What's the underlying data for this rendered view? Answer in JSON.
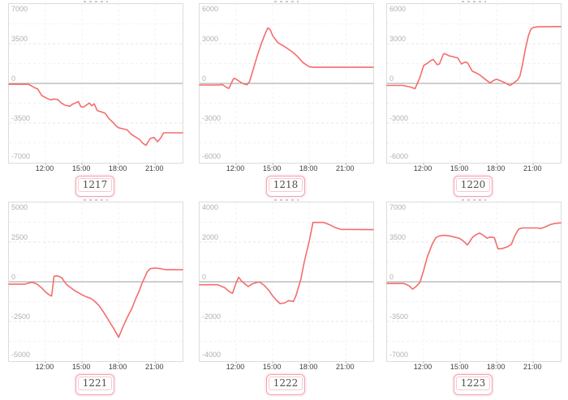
{
  "colors": {
    "series_line": "#f56c6c",
    "zero_line": "#9e9e9e",
    "grid_major": "#e6e6e6",
    "grid_minor": "#f2f2f2",
    "plot_border": "#dcdcdc",
    "y_label": "#b0b0b0",
    "x_label": "#404040",
    "badge_border": "#f2a2b0",
    "badge_text": "#4f4f4f"
  },
  "chart_data": [
    {
      "type": "line",
      "badge": "1217",
      "y_max": 7000,
      "y_ticks": [
        7000,
        3500,
        0,
        -3500,
        -7000
      ],
      "x_domain": [
        9,
        23.25
      ],
      "x_ticks": [
        {
          "hour": 12,
          "label": "12:00"
        },
        {
          "hour": 15,
          "label": "15:00"
        },
        {
          "hour": 18,
          "label": "18:00"
        },
        {
          "hour": 21,
          "label": "21:00"
        }
      ],
      "points": [
        [
          9,
          -80
        ],
        [
          10.6,
          -80
        ],
        [
          10.9,
          -250
        ],
        [
          11.1,
          -380
        ],
        [
          11.35,
          -480
        ],
        [
          11.7,
          -1070
        ],
        [
          12.1,
          -1310
        ],
        [
          12.4,
          -1450
        ],
        [
          12.7,
          -1380
        ],
        [
          13,
          -1420
        ],
        [
          13.3,
          -1730
        ],
        [
          13.6,
          -1920
        ],
        [
          14,
          -2020
        ],
        [
          14.2,
          -1850
        ],
        [
          14.45,
          -1730
        ],
        [
          14.7,
          -1610
        ],
        [
          14.9,
          -2040
        ],
        [
          15.1,
          -2110
        ],
        [
          15.35,
          -1920
        ],
        [
          15.6,
          -1730
        ],
        [
          15.8,
          -1970
        ],
        [
          16,
          -1800
        ],
        [
          16.25,
          -2400
        ],
        [
          16.6,
          -2520
        ],
        [
          16.9,
          -2630
        ],
        [
          17.2,
          -3090
        ],
        [
          17.6,
          -3510
        ],
        [
          17.85,
          -3800
        ],
        [
          18,
          -3915
        ],
        [
          18.3,
          -3990
        ],
        [
          18.7,
          -4100
        ],
        [
          19,
          -4460
        ],
        [
          19.35,
          -4700
        ],
        [
          19.7,
          -4930
        ],
        [
          20,
          -5290
        ],
        [
          20.25,
          -5460
        ],
        [
          20.6,
          -4860
        ],
        [
          20.9,
          -4770
        ],
        [
          21.2,
          -5140
        ],
        [
          21.45,
          -4820
        ],
        [
          21.7,
          -4360
        ],
        [
          23.25,
          -4360
        ]
      ]
    },
    {
      "type": "line",
      "badge": "1218",
      "y_max": 6000,
      "y_ticks": [
        6000,
        3000,
        0,
        -3000,
        -6000
      ],
      "x_domain": [
        9,
        23.25
      ],
      "x_ticks": [
        {
          "hour": 12,
          "label": "12:00"
        },
        {
          "hour": 15,
          "label": "15:00"
        },
        {
          "hour": 18,
          "label": "18:00"
        },
        {
          "hour": 21,
          "label": "21:00"
        }
      ],
      "points": [
        [
          9,
          -120
        ],
        [
          10.5,
          -120
        ],
        [
          10.9,
          -100
        ],
        [
          11.2,
          -300
        ],
        [
          11.4,
          -380
        ],
        [
          11.75,
          300
        ],
        [
          11.85,
          390
        ],
        [
          12.1,
          250
        ],
        [
          12.4,
          60
        ],
        [
          12.7,
          -60
        ],
        [
          12.9,
          -100
        ],
        [
          13.1,
          150
        ],
        [
          13.35,
          900
        ],
        [
          13.7,
          2000
        ],
        [
          14.1,
          3100
        ],
        [
          14.4,
          3800
        ],
        [
          14.6,
          4200
        ],
        [
          14.8,
          4050
        ],
        [
          15,
          3600
        ],
        [
          15.4,
          3100
        ],
        [
          15.9,
          2830
        ],
        [
          16.3,
          2580
        ],
        [
          16.7,
          2320
        ],
        [
          17,
          2070
        ],
        [
          17.5,
          1570
        ],
        [
          18,
          1260
        ],
        [
          18.3,
          1220
        ],
        [
          23.25,
          1220
        ]
      ]
    },
    {
      "type": "line",
      "badge": "1220",
      "y_max": 6000,
      "y_ticks": [
        6000,
        3000,
        0,
        -3000,
        -6000
      ],
      "x_domain": [
        9,
        23.25
      ],
      "x_ticks": [
        {
          "hour": 12,
          "label": "12:00"
        },
        {
          "hour": 15,
          "label": "15:00"
        },
        {
          "hour": 18,
          "label": "18:00"
        },
        {
          "hour": 21,
          "label": "21:00"
        }
      ],
      "points": [
        [
          9,
          -150
        ],
        [
          10.3,
          -150
        ],
        [
          10.9,
          -270
        ],
        [
          11.3,
          -400
        ],
        [
          11.7,
          450
        ],
        [
          12,
          1360
        ],
        [
          12.3,
          1520
        ],
        [
          12.6,
          1730
        ],
        [
          12.8,
          1810
        ],
        [
          13.1,
          1420
        ],
        [
          13.3,
          1470
        ],
        [
          13.6,
          2180
        ],
        [
          13.7,
          2260
        ],
        [
          14.1,
          2080
        ],
        [
          14.4,
          2020
        ],
        [
          14.8,
          1930
        ],
        [
          15.1,
          1470
        ],
        [
          15.4,
          1610
        ],
        [
          15.6,
          1570
        ],
        [
          16,
          920
        ],
        [
          16.3,
          800
        ],
        [
          16.6,
          650
        ],
        [
          17,
          350
        ],
        [
          17.3,
          140
        ],
        [
          17.45,
          40
        ],
        [
          17.8,
          250
        ],
        [
          18,
          310
        ],
        [
          18.3,
          200
        ],
        [
          18.7,
          40
        ],
        [
          18.9,
          -60
        ],
        [
          19.1,
          -160
        ],
        [
          19.4,
          40
        ],
        [
          19.7,
          250
        ],
        [
          19.9,
          550
        ],
        [
          20.1,
          1360
        ],
        [
          20.35,
          2580
        ],
        [
          20.6,
          3600
        ],
        [
          20.8,
          4100
        ],
        [
          21,
          4230
        ],
        [
          21.4,
          4280
        ],
        [
          23.25,
          4300
        ]
      ]
    },
    {
      "type": "line",
      "badge": "1221",
      "y_max": 5000,
      "y_ticks": [
        5000,
        2500,
        0,
        -2500,
        -5000
      ],
      "x_domain": [
        9,
        23.25
      ],
      "x_ticks": [
        {
          "hour": 12,
          "label": "12:00"
        },
        {
          "hour": 15,
          "label": "15:00"
        },
        {
          "hour": 18,
          "label": "18:00"
        },
        {
          "hour": 21,
          "label": "21:00"
        }
      ],
      "points": [
        [
          9,
          -150
        ],
        [
          10.3,
          -150
        ],
        [
          10.9,
          -30
        ],
        [
          11.3,
          -140
        ],
        [
          11.7,
          -390
        ],
        [
          12,
          -650
        ],
        [
          12.3,
          -820
        ],
        [
          12.5,
          -900
        ],
        [
          12.7,
          340
        ],
        [
          12.9,
          375
        ],
        [
          13.1,
          340
        ],
        [
          13.35,
          250
        ],
        [
          13.6,
          -50
        ],
        [
          13.8,
          -220
        ],
        [
          14.1,
          -390
        ],
        [
          14.4,
          -560
        ],
        [
          14.8,
          -730
        ],
        [
          15,
          -820
        ],
        [
          15.3,
          -930
        ],
        [
          15.7,
          -1040
        ],
        [
          16,
          -1200
        ],
        [
          16.4,
          -1500
        ],
        [
          16.8,
          -1950
        ],
        [
          17.2,
          -2450
        ],
        [
          17.6,
          -2950
        ],
        [
          18,
          -3500
        ],
        [
          18.4,
          -2760
        ],
        [
          18.7,
          -2260
        ],
        [
          19.1,
          -1660
        ],
        [
          19.4,
          -1070
        ],
        [
          19.7,
          -560
        ],
        [
          19.9,
          -140
        ],
        [
          20.1,
          200
        ],
        [
          20.35,
          630
        ],
        [
          20.6,
          830
        ],
        [
          21,
          865
        ],
        [
          21.4,
          830
        ],
        [
          21.9,
          760
        ],
        [
          23.25,
          760
        ]
      ]
    },
    {
      "type": "line",
      "badge": "1222",
      "y_max": 4000,
      "y_ticks": [
        4000,
        2000,
        0,
        -2000,
        -4000
      ],
      "x_domain": [
        9,
        23.25
      ],
      "x_ticks": [
        {
          "hour": 12,
          "label": "12:00"
        },
        {
          "hour": 15,
          "label": "15:00"
        },
        {
          "hour": 18,
          "label": "18:00"
        },
        {
          "hour": 21,
          "label": "21:00"
        }
      ],
      "points": [
        [
          9,
          -150
        ],
        [
          10.5,
          -150
        ],
        [
          11.1,
          -310
        ],
        [
          11.4,
          -480
        ],
        [
          11.7,
          -580
        ],
        [
          12,
          -40
        ],
        [
          12.2,
          230
        ],
        [
          12.45,
          30
        ],
        [
          12.8,
          -150
        ],
        [
          13,
          -240
        ],
        [
          13.3,
          -110
        ],
        [
          13.7,
          -30
        ],
        [
          13.95,
          -20
        ],
        [
          14.3,
          -180
        ],
        [
          14.7,
          -450
        ],
        [
          15,
          -720
        ],
        [
          15.35,
          -960
        ],
        [
          15.6,
          -1100
        ],
        [
          16,
          -1060
        ],
        [
          16.3,
          -950
        ],
        [
          16.7,
          -990
        ],
        [
          16.9,
          -720
        ],
        [
          17.3,
          100
        ],
        [
          17.6,
          1040
        ],
        [
          18,
          2060
        ],
        [
          18.3,
          2990
        ],
        [
          19.2,
          2990
        ],
        [
          19.7,
          2870
        ],
        [
          20.1,
          2740
        ],
        [
          20.6,
          2640
        ],
        [
          23.25,
          2630
        ]
      ]
    },
    {
      "type": "line",
      "badge": "1223",
      "y_max": 7000,
      "y_ticks": [
        7000,
        3500,
        0,
        -3500,
        -7000
      ],
      "x_domain": [
        9,
        23.25
      ],
      "x_ticks": [
        {
          "hour": 12,
          "label": "12:00"
        },
        {
          "hour": 15,
          "label": "15:00"
        },
        {
          "hour": 18,
          "label": "18:00"
        },
        {
          "hour": 21,
          "label": "21:00"
        }
      ],
      "points": [
        [
          9,
          -150
        ],
        [
          10.4,
          -150
        ],
        [
          10.8,
          -350
        ],
        [
          11.1,
          -650
        ],
        [
          11.4,
          -400
        ],
        [
          11.7,
          -50
        ],
        [
          12,
          1000
        ],
        [
          12.3,
          2200
        ],
        [
          12.7,
          3300
        ],
        [
          13,
          3890
        ],
        [
          13.3,
          4050
        ],
        [
          13.7,
          4100
        ],
        [
          14.1,
          4050
        ],
        [
          14.5,
          3950
        ],
        [
          14.9,
          3850
        ],
        [
          15.2,
          3650
        ],
        [
          15.6,
          3250
        ],
        [
          16,
          3900
        ],
        [
          16.3,
          4150
        ],
        [
          16.6,
          4300
        ],
        [
          16.9,
          4100
        ],
        [
          17.2,
          3850
        ],
        [
          17.5,
          3950
        ],
        [
          17.8,
          3900
        ],
        [
          18.1,
          2900
        ],
        [
          18.5,
          2950
        ],
        [
          18.9,
          3100
        ],
        [
          19.2,
          3300
        ],
        [
          19.5,
          4100
        ],
        [
          19.8,
          4650
        ],
        [
          20.1,
          4750
        ],
        [
          21.3,
          4750
        ],
        [
          21.6,
          4700
        ],
        [
          22,
          4850
        ],
        [
          22.4,
          5050
        ],
        [
          22.8,
          5150
        ],
        [
          23.25,
          5200
        ]
      ]
    }
  ]
}
